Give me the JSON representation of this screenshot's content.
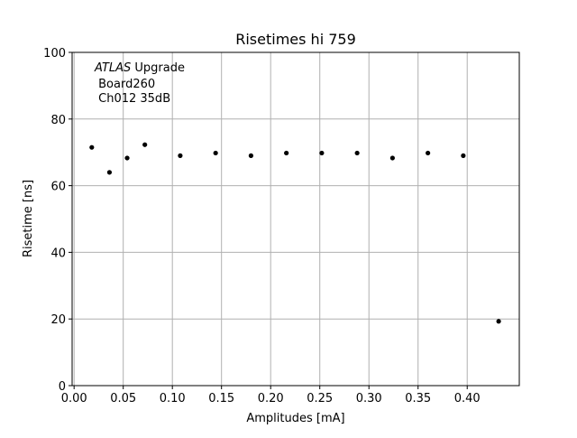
{
  "chart_data": {
    "type": "scatter",
    "title": "Risetimes hi 759",
    "xlabel": "Amplitudes [mA]",
    "ylabel": "Risetime [ns]",
    "xlim": [
      -0.002,
      0.453
    ],
    "ylim": [
      0,
      100
    ],
    "xticks": [
      0.0,
      0.05,
      0.1,
      0.15,
      0.2,
      0.25,
      0.3,
      0.35,
      0.4
    ],
    "xtick_labels": [
      "0.00",
      "0.05",
      "0.10",
      "0.15",
      "0.20",
      "0.25",
      "0.30",
      "0.35",
      "0.40"
    ],
    "yticks": [
      0,
      20,
      40,
      60,
      80,
      100
    ],
    "ytick_labels": [
      "0",
      "20",
      "40",
      "60",
      "80",
      "100"
    ],
    "grid": true,
    "annotation": {
      "italic": "ATLAS",
      "line1_rest": " Upgrade",
      "line2": " Board260",
      "line3": " Ch012 35dB"
    },
    "series": [
      {
        "marker_color": "#000000",
        "x": [
          0.018,
          0.036,
          0.054,
          0.072,
          0.108,
          0.144,
          0.18,
          0.216,
          0.252,
          0.288,
          0.324,
          0.36,
          0.396,
          0.432
        ],
        "y": [
          71.5,
          64.0,
          68.3,
          72.3,
          69.0,
          69.8,
          69.0,
          69.8,
          69.8,
          69.8,
          68.3,
          69.8,
          69.0,
          19.3
        ]
      }
    ]
  }
}
